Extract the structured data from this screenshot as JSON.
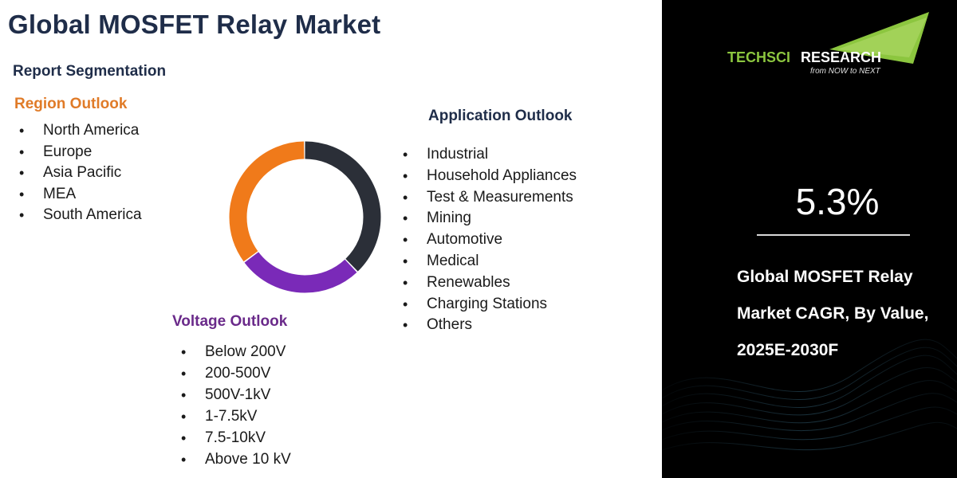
{
  "title": "Global MOSFET Relay Market",
  "segmentation_title": "Report Segmentation",
  "region": {
    "heading": "Region Outlook",
    "items": [
      "North America",
      "Europe",
      "Asia Pacific",
      "MEA",
      "South America"
    ]
  },
  "application": {
    "heading": "Application Outlook",
    "items": [
      "Industrial",
      "Household Appliances",
      "Test & Measurements",
      "Mining",
      "Automotive",
      "Medical",
      "Renewables",
      "Charging Stations",
      "Others"
    ]
  },
  "voltage": {
    "heading": "Voltage Outlook",
    "items": [
      "Below 200V",
      "200-500V",
      "500V-1kV",
      "1-7.5kV",
      "7.5-10kV",
      "Above 10 kV"
    ]
  },
  "donut": {
    "segments": [
      {
        "color": "#2b2f38",
        "fraction": 0.38
      },
      {
        "color": "#7a2ab8",
        "fraction": 0.27
      },
      {
        "color": "#f07a1a",
        "fraction": 0.35
      }
    ]
  },
  "logo": {
    "name": "TechSci Research",
    "tagline": "from NOW to NEXT"
  },
  "cagr": {
    "value": "5.3%",
    "label_lines": [
      "Global MOSFET Relay",
      "Market CAGR, By Value,",
      "2025E-2030F"
    ]
  },
  "colors": {
    "navy": "#1f2d49",
    "orange": "#e07b28",
    "purple": "#6a2a8a",
    "logo_green": "#8cc63f"
  }
}
